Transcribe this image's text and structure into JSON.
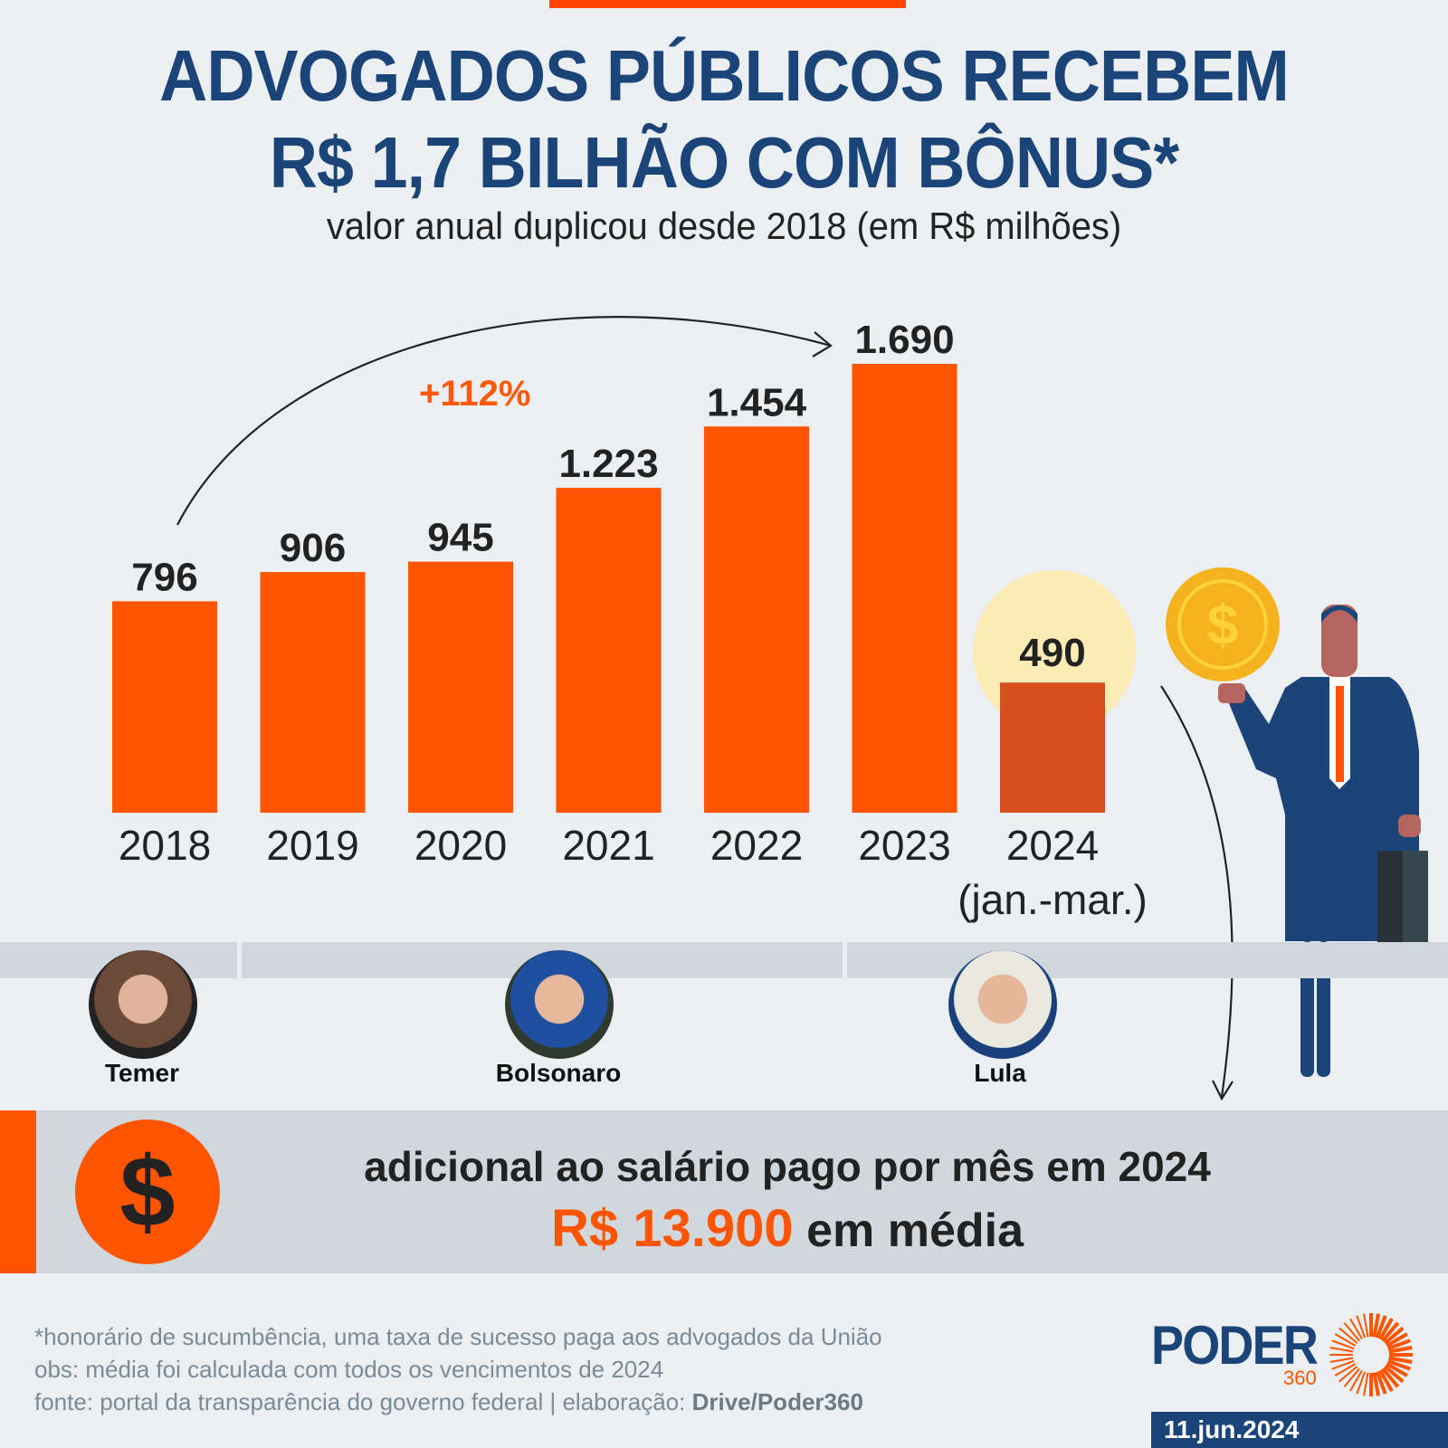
{
  "header": {
    "title_line1": "ADVOGADOS PÚBLICOS RECEBEM",
    "title_line2": "R$ 1,7 BILHÃO COM BÔNUS*",
    "subtitle": "valor anual duplicou desde 2018 (em R$ milhões)"
  },
  "colors": {
    "bar": "#ff5500",
    "bar_partial": "#d84f1f",
    "highlight_circle": "#fdebb6",
    "title": "#1b4479",
    "accent": "#ff5500"
  },
  "chart_data": {
    "type": "bar",
    "title": "ADVOGADOS PÚBLICOS RECEBEM R$ 1,7 BILHÃO COM BÔNUS*",
    "subtitle": "valor anual duplicou desde 2018 (em R$ milhões)",
    "categories": [
      "2018",
      "2019",
      "2020",
      "2021",
      "2022",
      "2023",
      "2024"
    ],
    "category_sublabels": [
      "",
      "",
      "",
      "",
      "",
      "",
      "(jan.-mar.)"
    ],
    "values": [
      796,
      906,
      945,
      1223,
      1454,
      1690,
      490
    ],
    "value_labels": [
      "796",
      "906",
      "945",
      "1.223",
      "1.454",
      "1.690",
      "490"
    ],
    "xlabel": "",
    "ylabel": "R$ milhões",
    "ylim": [
      0,
      1690
    ],
    "grid": false,
    "legend": "none",
    "annotations": [
      {
        "text": "+112%",
        "from": "2018",
        "to": "2023",
        "type": "arrow"
      }
    ],
    "highlight": {
      "category": "2024",
      "note": "partial year"
    }
  },
  "governments": [
    {
      "name": "Temer",
      "years": [
        "2018"
      ]
    },
    {
      "name": "Bolsonaro",
      "years": [
        "2019",
        "2020",
        "2021",
        "2022"
      ]
    },
    {
      "name": "Lula",
      "years": [
        "2023",
        "2024"
      ]
    }
  ],
  "info_box": {
    "icon": "dollar-icon",
    "line1": "adicional ao salário pago por mês em 2024",
    "amount": "R$ 13.900",
    "amount_suffix": "em média"
  },
  "footer": {
    "note1": "*honorário de sucumbência, uma taxa de sucesso paga aos advogados da União",
    "note2": "obs: média foi calculada com todos os vencimentos de 2024",
    "source_prefix": "fonte: portal da transparência do governo federal | elaboração: ",
    "source_credit": "Drive/Poder360",
    "logo_text": "PODER",
    "logo_sub": "360",
    "date": "11.jun.2024"
  }
}
